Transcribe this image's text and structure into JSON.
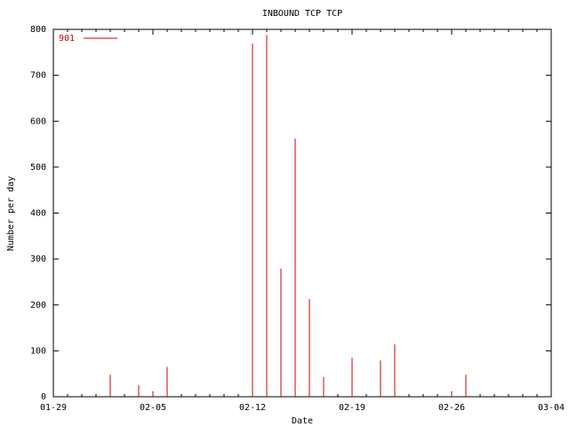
{
  "chart_data": {
    "type": "impulse",
    "title": "INBOUND TCP TCP",
    "x_label": "Date",
    "y_label": "Number per day",
    "x": [
      "02-02",
      "02-04",
      "02-05",
      "02-06",
      "02-12",
      "02-13",
      "02-14",
      "02-15",
      "02-16",
      "02-17",
      "02-19",
      "02-21",
      "02-22",
      "02-26",
      "02-27"
    ],
    "series": [
      {
        "name": "901",
        "color": "#d00000",
        "values": [
          48,
          25,
          10,
          65,
          769,
          788,
          279,
          562,
          213,
          43,
          85,
          79,
          114,
          10,
          48
        ]
      }
    ],
    "xlim": [
      "01-29",
      "03-04"
    ],
    "xticks": [
      "01-29",
      "02-05",
      "02-12",
      "02-19",
      "02-26",
      "03-04"
    ],
    "ylim": [
      0,
      800
    ],
    "yticks": [
      0,
      100,
      200,
      300,
      400,
      500,
      600,
      700,
      800
    ],
    "legend": "top-left",
    "grid": false
  }
}
